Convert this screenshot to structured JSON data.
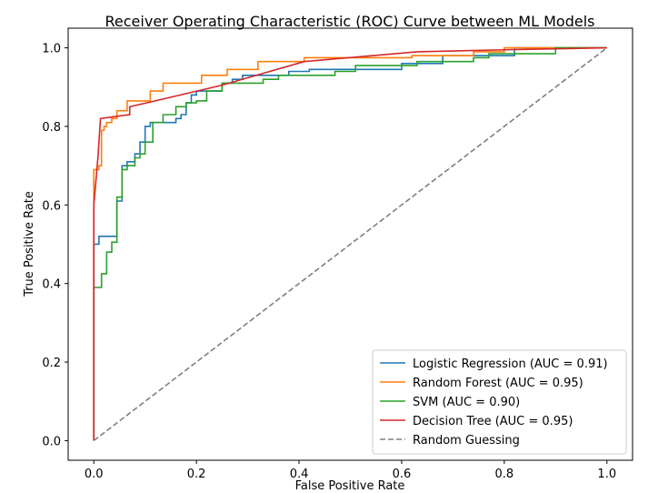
{
  "chart_data": {
    "type": "line",
    "title": "Receiver Operating Characteristic (ROC) Curve between ML Models",
    "xlabel": "False Positive Rate",
    "ylabel": "True Positive Rate",
    "xlim": [
      -0.05,
      1.05
    ],
    "ylim": [
      -0.05,
      1.05
    ],
    "xticks": [
      0.0,
      0.2,
      0.4,
      0.6,
      0.8,
      1.0
    ],
    "yticks": [
      0.0,
      0.2,
      0.4,
      0.6,
      0.8,
      1.0
    ],
    "xtick_labels": [
      "0.0",
      "0.2",
      "0.4",
      "0.6",
      "0.8",
      "1.0"
    ],
    "ytick_labels": [
      "0.0",
      "0.2",
      "0.4",
      "0.6",
      "0.8",
      "1.0"
    ],
    "grid": false,
    "legend_position": "lower-right",
    "series": [
      {
        "name": "Logistic Regression (AUC = 0.91)",
        "color": "#1f77b4",
        "style": "step",
        "points": [
          [
            0,
            0
          ],
          [
            0,
            0.5
          ],
          [
            0.01,
            0.5
          ],
          [
            0.01,
            0.52
          ],
          [
            0.045,
            0.52
          ],
          [
            0.045,
            0.61
          ],
          [
            0.055,
            0.61
          ],
          [
            0.055,
            0.7
          ],
          [
            0.065,
            0.7
          ],
          [
            0.065,
            0.71
          ],
          [
            0.08,
            0.71
          ],
          [
            0.08,
            0.73
          ],
          [
            0.09,
            0.73
          ],
          [
            0.09,
            0.76
          ],
          [
            0.1,
            0.76
          ],
          [
            0.1,
            0.8
          ],
          [
            0.11,
            0.8
          ],
          [
            0.11,
            0.81
          ],
          [
            0.16,
            0.81
          ],
          [
            0.16,
            0.82
          ],
          [
            0.17,
            0.82
          ],
          [
            0.17,
            0.83
          ],
          [
            0.18,
            0.83
          ],
          [
            0.18,
            0.86
          ],
          [
            0.19,
            0.86
          ],
          [
            0.19,
            0.88
          ],
          [
            0.2,
            0.88
          ],
          [
            0.2,
            0.89
          ],
          [
            0.25,
            0.89
          ],
          [
            0.25,
            0.91
          ],
          [
            0.27,
            0.91
          ],
          [
            0.27,
            0.92
          ],
          [
            0.29,
            0.92
          ],
          [
            0.29,
            0.93
          ],
          [
            0.38,
            0.93
          ],
          [
            0.38,
            0.94
          ],
          [
            0.42,
            0.94
          ],
          [
            0.42,
            0.945
          ],
          [
            0.6,
            0.945
          ],
          [
            0.6,
            0.96
          ],
          [
            0.68,
            0.96
          ],
          [
            0.68,
            0.98
          ],
          [
            0.82,
            0.98
          ],
          [
            0.82,
            1.0
          ],
          [
            1.0,
            1.0
          ]
        ]
      },
      {
        "name": "Random Forest (AUC = 0.95)",
        "color": "#ff7f0e",
        "style": "step",
        "points": [
          [
            0,
            0
          ],
          [
            0,
            0.69
          ],
          [
            0.01,
            0.69
          ],
          [
            0.01,
            0.7
          ],
          [
            0.015,
            0.7
          ],
          [
            0.015,
            0.79
          ],
          [
            0.02,
            0.79
          ],
          [
            0.02,
            0.8
          ],
          [
            0.025,
            0.8
          ],
          [
            0.025,
            0.81
          ],
          [
            0.035,
            0.81
          ],
          [
            0.035,
            0.82
          ],
          [
            0.045,
            0.82
          ],
          [
            0.045,
            0.84
          ],
          [
            0.065,
            0.84
          ],
          [
            0.065,
            0.865
          ],
          [
            0.11,
            0.865
          ],
          [
            0.11,
            0.89
          ],
          [
            0.135,
            0.89
          ],
          [
            0.135,
            0.91
          ],
          [
            0.21,
            0.91
          ],
          [
            0.21,
            0.93
          ],
          [
            0.26,
            0.93
          ],
          [
            0.26,
            0.945
          ],
          [
            0.32,
            0.945
          ],
          [
            0.32,
            0.965
          ],
          [
            0.41,
            0.965
          ],
          [
            0.41,
            0.975
          ],
          [
            0.62,
            0.975
          ],
          [
            0.62,
            0.98
          ],
          [
            0.74,
            0.98
          ],
          [
            0.74,
            0.99
          ],
          [
            0.8,
            0.99
          ],
          [
            0.8,
            1.0
          ],
          [
            1.0,
            1.0
          ]
        ]
      },
      {
        "name": "SVM (AUC = 0.90)",
        "color": "#2ca02c",
        "style": "step",
        "points": [
          [
            0,
            0
          ],
          [
            0,
            0.39
          ],
          [
            0.015,
            0.39
          ],
          [
            0.015,
            0.425
          ],
          [
            0.025,
            0.425
          ],
          [
            0.025,
            0.48
          ],
          [
            0.035,
            0.48
          ],
          [
            0.035,
            0.505
          ],
          [
            0.045,
            0.505
          ],
          [
            0.045,
            0.62
          ],
          [
            0.055,
            0.62
          ],
          [
            0.055,
            0.69
          ],
          [
            0.065,
            0.69
          ],
          [
            0.065,
            0.7
          ],
          [
            0.08,
            0.7
          ],
          [
            0.08,
            0.72
          ],
          [
            0.09,
            0.72
          ],
          [
            0.09,
            0.73
          ],
          [
            0.1,
            0.73
          ],
          [
            0.1,
            0.76
          ],
          [
            0.115,
            0.76
          ],
          [
            0.115,
            0.81
          ],
          [
            0.135,
            0.81
          ],
          [
            0.135,
            0.83
          ],
          [
            0.16,
            0.83
          ],
          [
            0.16,
            0.85
          ],
          [
            0.18,
            0.85
          ],
          [
            0.18,
            0.86
          ],
          [
            0.2,
            0.86
          ],
          [
            0.2,
            0.865
          ],
          [
            0.22,
            0.865
          ],
          [
            0.22,
            0.89
          ],
          [
            0.25,
            0.89
          ],
          [
            0.25,
            0.91
          ],
          [
            0.33,
            0.91
          ],
          [
            0.33,
            0.92
          ],
          [
            0.36,
            0.92
          ],
          [
            0.36,
            0.93
          ],
          [
            0.47,
            0.93
          ],
          [
            0.47,
            0.94
          ],
          [
            0.51,
            0.94
          ],
          [
            0.51,
            0.955
          ],
          [
            0.63,
            0.955
          ],
          [
            0.63,
            0.965
          ],
          [
            0.74,
            0.965
          ],
          [
            0.74,
            0.975
          ],
          [
            0.77,
            0.975
          ],
          [
            0.77,
            0.985
          ],
          [
            0.9,
            0.985
          ],
          [
            0.9,
            1.0
          ],
          [
            1.0,
            1.0
          ]
        ]
      },
      {
        "name": "Decision Tree (AUC = 0.95)",
        "color": "#d62728",
        "style": "line",
        "points": [
          [
            0,
            0
          ],
          [
            0,
            0.6
          ],
          [
            0.008,
            0.72
          ],
          [
            0.013,
            0.82
          ],
          [
            0.07,
            0.83
          ],
          [
            0.07,
            0.85
          ],
          [
            0.12,
            0.865
          ],
          [
            0.25,
            0.905
          ],
          [
            0.41,
            0.965
          ],
          [
            0.63,
            0.99
          ],
          [
            0.8,
            0.995
          ],
          [
            1.0,
            1.0
          ]
        ]
      },
      {
        "name": "Random Guessing",
        "color": "#7f7f7f",
        "style": "dashed",
        "points": [
          [
            0,
            0
          ],
          [
            1,
            1
          ]
        ]
      }
    ]
  }
}
